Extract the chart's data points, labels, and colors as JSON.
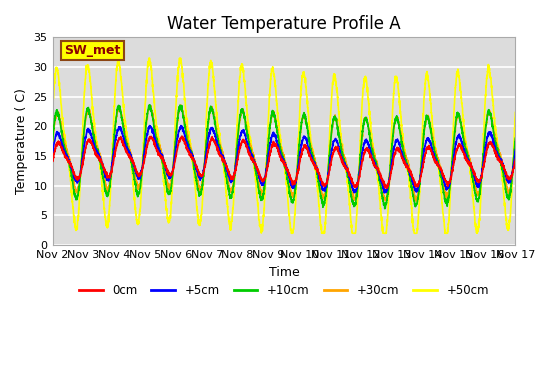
{
  "title": "Water Temperature Profile A",
  "xlabel": "Time",
  "ylabel": "Temperature (C)",
  "xlim": [
    0,
    15
  ],
  "ylim": [
    0,
    35
  ],
  "yticks": [
    0,
    5,
    10,
    15,
    20,
    25,
    30,
    35
  ],
  "xtick_labels": [
    "Nov 2",
    "Nov 3",
    "Nov 4",
    "Nov 5",
    "Nov 6",
    "Nov 7",
    "Nov 8",
    "Nov 9",
    "Nov 10",
    "Nov 11",
    "Nov 12",
    "Nov 13",
    "Nov 14",
    "Nov 15",
    "Nov 16",
    "Nov 17"
  ],
  "annotation_text": "SW_met",
  "annotation_color": "#8B0000",
  "annotation_bg": "#FFFF00",
  "annotation_border": "#8B4513",
  "line_colors": {
    "0cm": "#FF0000",
    "+5cm": "#0000FF",
    "+10cm": "#00CC00",
    "+30cm": "#FFA500",
    "+50cm": "#FFFF00"
  },
  "plot_bg": "#DCDCDC",
  "title_fontsize": 12,
  "axis_fontsize": 9,
  "tick_fontsize": 8
}
